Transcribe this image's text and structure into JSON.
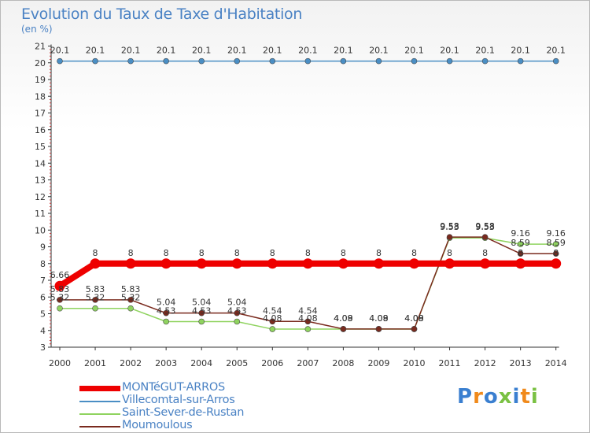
{
  "header": {
    "title": "Evolution du Taux de Taxe d'Habitation",
    "subtitle": "(en %)"
  },
  "logo": {
    "text": "Proxiti"
  },
  "chart_data": {
    "type": "line",
    "title": "Evolution du Taux de Taxe d'Habitation",
    "ylabel": "(en %)",
    "xlabel": "",
    "ylim": [
      3,
      21
    ],
    "grid": false,
    "legend_position": "bottom-left",
    "categories": [
      "2000",
      "2001",
      "2002",
      "2003",
      "2004",
      "2005",
      "2006",
      "2007",
      "2008",
      "2009",
      "2010",
      "2011",
      "2012",
      "2013",
      "2014"
    ],
    "yticks": [
      "3",
      "4",
      "5",
      "6",
      "7",
      "8",
      "9",
      "10",
      "11",
      "12",
      "13",
      "14",
      "15",
      "16",
      "17",
      "18",
      "19",
      "20",
      "21"
    ],
    "series": [
      {
        "name": "MONTéGUT-ARROS",
        "color": "#ee0000",
        "values": [
          6.66,
          8,
          8,
          8,
          8,
          8,
          8,
          8,
          8,
          8,
          8,
          8,
          8,
          8,
          8
        ],
        "labels": [
          "6.66",
          "8",
          "8",
          "8",
          "8",
          "8",
          "8",
          "8",
          "8",
          "8",
          "8",
          "8",
          "8",
          "8",
          "8"
        ]
      },
      {
        "name": "Villecomtal-sur-Arros",
        "color": "#4a8ec4",
        "values": [
          20.1,
          20.1,
          20.1,
          20.1,
          20.1,
          20.1,
          20.1,
          20.1,
          20.1,
          20.1,
          20.1,
          20.1,
          20.1,
          20.1,
          20.1
        ],
        "labels": [
          "20.1",
          "20.1",
          "20.1",
          "20.1",
          "20.1",
          "20.1",
          "20.1",
          "20.1",
          "20.1",
          "20.1",
          "20.1",
          "20.1",
          "20.1",
          "20.1",
          "20.1"
        ]
      },
      {
        "name": "Saint-Sever-de-Rustan",
        "color": "#8fd35f",
        "values": [
          5.32,
          5.32,
          5.32,
          4.53,
          4.53,
          4.53,
          4.08,
          4.08,
          4.08,
          4.08,
          4.08,
          9.53,
          9.53,
          9.16,
          9.16
        ],
        "labels": [
          "5.32",
          "5.32",
          "5.32",
          "4.53",
          "4.53",
          "4.53",
          "4.08",
          "4.08",
          "4.08",
          "4.08",
          "4.08",
          "9.53",
          "9.53",
          "9.16",
          "9.16"
        ]
      },
      {
        "name": "Moumoulous",
        "color": "#7a2a1e",
        "values": [
          5.83,
          5.83,
          5.83,
          5.04,
          5.04,
          5.04,
          4.54,
          4.54,
          4.09,
          4.09,
          4.09,
          9.58,
          9.58,
          8.59,
          8.59
        ],
        "labels": [
          "5.83",
          "5.83",
          "5.83",
          "5.04",
          "5.04",
          "5.04",
          "4.54",
          "4.54",
          "4.09",
          "4.09",
          "4.09",
          "9.58",
          "9.58",
          "8.59",
          "8.59"
        ]
      }
    ]
  }
}
